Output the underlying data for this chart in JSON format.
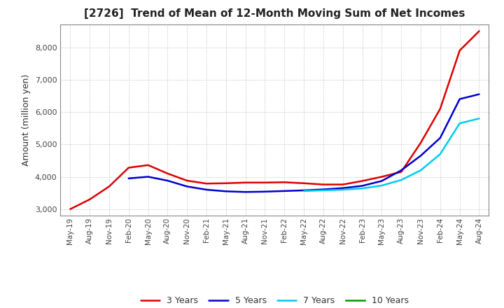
{
  "title": "[2726]  Trend of Mean of 12-Month Moving Sum of Net Incomes",
  "ylabel": "Amount (million yen)",
  "background_color": "#ffffff",
  "grid_color": "#bbbbbb",
  "ylim": [
    2800,
    8700
  ],
  "yticks": [
    3000,
    4000,
    5000,
    6000,
    7000,
    8000
  ],
  "legend_labels": [
    "3 Years",
    "5 Years",
    "7 Years",
    "10 Years"
  ],
  "line_colors": [
    "#dd0000",
    "#0000cc",
    "#00ccee",
    "#009900"
  ],
  "series": {
    "3yr": {
      "x": [
        0,
        1,
        2,
        3,
        4,
        5,
        6,
        7,
        8,
        9,
        10,
        11,
        12,
        13,
        14,
        15,
        16,
        17,
        18,
        19,
        20,
        21
      ],
      "y": [
        3000,
        3300,
        3700,
        4280,
        4360,
        4100,
        3880,
        3790,
        3800,
        3820,
        3820,
        3830,
        3800,
        3760,
        3760,
        3870,
        4000,
        4150,
        5050,
        6100,
        7900,
        8500
      ]
    },
    "5yr": {
      "x": [
        3,
        4,
        5,
        6,
        7,
        8,
        9,
        10,
        11,
        12,
        13,
        14,
        15,
        16,
        17,
        18,
        19,
        20,
        21
      ],
      "y": [
        3950,
        4000,
        3880,
        3700,
        3600,
        3550,
        3530,
        3540,
        3560,
        3580,
        3610,
        3650,
        3720,
        3870,
        4200,
        4650,
        5200,
        6400,
        6550
      ]
    },
    "7yr": {
      "x": [
        12,
        13,
        14,
        15,
        16,
        17,
        18,
        19,
        20,
        21
      ],
      "y": [
        3560,
        3580,
        3600,
        3640,
        3730,
        3900,
        4200,
        4700,
        5650,
        5800
      ]
    },
    "10yr": {
      "x": [],
      "y": []
    }
  },
  "xtick_labels": [
    "May-19",
    "Aug-19",
    "Nov-19",
    "Feb-20",
    "May-20",
    "Aug-20",
    "Nov-20",
    "Feb-21",
    "May-21",
    "Aug-21",
    "Nov-21",
    "Feb-22",
    "May-22",
    "Aug-22",
    "Nov-22",
    "Feb-23",
    "May-23",
    "Aug-23",
    "Nov-23",
    "Feb-24",
    "May-24",
    "Aug-24"
  ]
}
